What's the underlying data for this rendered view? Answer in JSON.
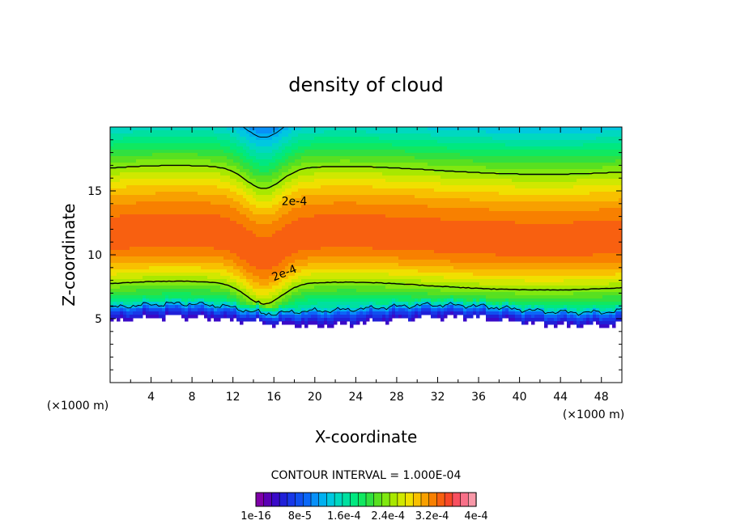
{
  "chart_data": {
    "type": "heatmap",
    "title": "density of cloud",
    "xlabel": "X-coordinate",
    "ylabel": "Z-coordinate",
    "x_unit": "(×1000 m)",
    "y_unit": "(×1000 m)",
    "xlim": [
      0,
      50
    ],
    "ylim": [
      0,
      20
    ],
    "x_ticks": [
      4,
      8,
      12,
      16,
      20,
      24,
      28,
      32,
      36,
      40,
      44,
      48
    ],
    "y_ticks": [
      5,
      10,
      15
    ],
    "contour_interval_text": "CONTOUR INTERVAL = 1.000E-04",
    "contour_levels": [
      0.0001,
      0.0002,
      0.0003
    ],
    "contour_labels": [
      {
        "text": "2e-4",
        "x": 18.0,
        "y": 14.2
      },
      {
        "text": "2e-4",
        "x": 17.0,
        "y": 8.6
      }
    ],
    "field": {
      "cloud_base_z": 4.8,
      "peak_value": 0.00028,
      "peak_z": 11.5,
      "top_value": 5e-05
    },
    "colorbar": {
      "colors": [
        "#7f00a8",
        "#5a00b4",
        "#3a0ac8",
        "#2020d8",
        "#1838e8",
        "#1050f0",
        "#0a68f8",
        "#0890f8",
        "#00b0f0",
        "#00c8e0",
        "#00d8c0",
        "#00e0a0",
        "#00e880",
        "#10e860",
        "#30e040",
        "#58e020",
        "#80e810",
        "#a8e800",
        "#d0e800",
        "#f0e000",
        "#f8c000",
        "#f8a000",
        "#f88000",
        "#f86010",
        "#f84828",
        "#f85060",
        "#f87088",
        "#f898a8"
      ],
      "tick_labels": [
        "1e-16",
        "8e-5",
        "1.6e-4",
        "2.4e-4",
        "3.2e-4",
        "4e-4"
      ]
    }
  }
}
